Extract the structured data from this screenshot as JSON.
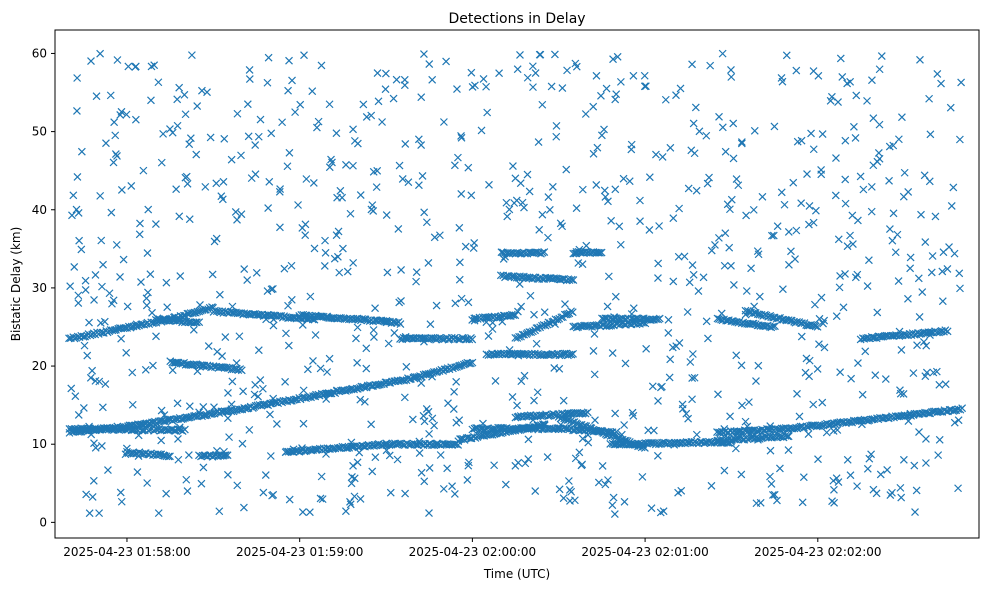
{
  "chart_data": {
    "type": "scatter",
    "title": "Detections in Delay",
    "xlabel": "Time (UTC)",
    "ylabel": "Bistatic Delay (km)",
    "x_ticks": [
      "2025-04-23 01:58:00",
      "2025-04-23 01:59:00",
      "2025-04-23 02:00:00",
      "2025-04-23 02:01:00",
      "2025-04-23 02:02:00"
    ],
    "y_ticks": [
      "0",
      "10",
      "20",
      "30",
      "40",
      "50",
      "60"
    ],
    "xlim": [
      "2025-04-23 01:57:35",
      "2025-04-23 02:02:56"
    ],
    "ylim": [
      -2,
      63
    ],
    "marker": "x",
    "color": "#1f77b4",
    "grid": false,
    "series": [
      {
        "tracks": [
          {
            "x": [
              "2025-04-23 01:57:40",
              "2025-04-23 01:58:05",
              "2025-04-23 01:58:40",
              "2025-04-23 01:59:10",
              "2025-04-23 01:59:40",
              "2025-04-23 01:59:60"
            ],
            "y": [
              11.5,
              12.5,
              14.5,
              16.5,
              18.5,
              20.5
            ]
          },
          {
            "x": [
              "2025-04-23 02:00:00",
              "2025-04-23 02:00:30",
              "2025-04-23 02:00:50"
            ],
            "y": [
              12.0,
              12.0,
              11.5
            ]
          },
          {
            "x": [
              "2025-04-23 02:00:48",
              "2025-04-23 02:01:30"
            ],
            "y": [
              10.0,
              10.3
            ]
          },
          {
            "x": [
              "2025-04-23 02:01:25",
              "2025-04-23 02:01:50",
              "2025-04-23 02:02:15",
              "2025-04-23 02:02:50"
            ],
            "y": [
              11.5,
              12.0,
              13.0,
              14.5
            ]
          },
          {
            "x": [
              "2025-04-23 01:58:55",
              "2025-04-23 01:59:30",
              "2025-04-23 01:59:55"
            ],
            "y": [
              9.0,
              10.0,
              10.0
            ]
          },
          {
            "x": [
              "2025-04-23 01:59:55",
              "2025-04-23 02:00:25"
            ],
            "y": [
              10.5,
              12.5
            ]
          },
          {
            "x": [
              "2025-04-23 02:00:30",
              "2025-04-23 02:01:00"
            ],
            "y": [
              13.5,
              9.5
            ]
          },
          {
            "x": [
              "2025-04-23 01:57:40",
              "2025-04-23 01:58:20"
            ],
            "y": [
              12.0,
              11.8
            ]
          },
          {
            "x": [
              "2025-04-23 01:57:40",
              "2025-04-23 01:58:15",
              "2025-04-23 01:58:30"
            ],
            "y": [
              23.5,
              26.0,
              27.5
            ]
          },
          {
            "x": [
              "2025-04-23 01:58:30",
              "2025-04-23 01:59:05"
            ],
            "y": [
              27.0,
              26.0
            ]
          },
          {
            "x": [
              "2025-04-23 01:58:10",
              "2025-04-23 01:58:25"
            ],
            "y": [
              26.0,
              25.5
            ]
          },
          {
            "x": [
              "2025-04-23 01:59:00",
              "2025-04-23 01:59:20",
              "2025-04-23 01:59:35"
            ],
            "y": [
              26.5,
              26.0,
              25.5
            ]
          },
          {
            "x": [
              "2025-04-23 01:59:35",
              "2025-04-23 02:00:00"
            ],
            "y": [
              23.5,
              23.5
            ]
          },
          {
            "x": [
              "2025-04-23 02:00:00",
              "2025-04-23 02:00:15"
            ],
            "y": [
              26.0,
              26.5
            ]
          },
          {
            "x": [
              "2025-04-23 02:00:15",
              "2025-04-23 02:00:35"
            ],
            "y": [
              23.5,
              27.0
            ]
          },
          {
            "x": [
              "2025-04-23 02:00:35",
              "2025-04-23 02:01:00"
            ],
            "y": [
              25.0,
              25.5
            ]
          },
          {
            "x": [
              "2025-04-23 02:00:45",
              "2025-04-23 02:01:05"
            ],
            "y": [
              26.0,
              26.0
            ]
          },
          {
            "x": [
              "2025-04-23 02:01:25",
              "2025-04-23 02:01:45"
            ],
            "y": [
              26.0,
              25.0
            ]
          },
          {
            "x": [
              "2025-04-23 02:01:35",
              "2025-04-23 02:02:00"
            ],
            "y": [
              27.0,
              25.0
            ]
          },
          {
            "x": [
              "2025-04-23 02:02:15",
              "2025-04-23 02:02:45"
            ],
            "y": [
              23.5,
              24.5
            ]
          },
          {
            "x": [
              "2025-04-23 02:00:10",
              "2025-04-23 02:00:35"
            ],
            "y": [
              31.5,
              31.0
            ]
          },
          {
            "x": [
              "2025-04-23 02:00:35",
              "2025-04-23 02:00:45"
            ],
            "y": [
              34.5,
              34.5
            ]
          },
          {
            "x": [
              "2025-04-23 02:00:10",
              "2025-04-23 02:00:25"
            ],
            "y": [
              34.5,
              34.5
            ]
          },
          {
            "x": [
              "2025-04-23 02:00:05",
              "2025-04-23 02:00:35"
            ],
            "y": [
              21.5,
              21.5
            ]
          },
          {
            "x": [
              "2025-04-23 01:58:15",
              "2025-04-23 01:58:40"
            ],
            "y": [
              20.5,
              19.5
            ]
          },
          {
            "x": [
              "2025-04-23 01:58:00",
              "2025-04-23 01:58:15"
            ],
            "y": [
              9.0,
              8.5
            ]
          },
          {
            "x": [
              "2025-04-23 01:58:25",
              "2025-04-23 01:58:35"
            ],
            "y": [
              8.5,
              8.5
            ]
          },
          {
            "x": [
              "2025-04-23 02:00:15",
              "2025-04-23 02:00:40"
            ],
            "y": [
              13.5,
              14.0
            ]
          },
          {
            "x": [
              "2025-04-23 02:01:25",
              "2025-04-23 02:01:50"
            ],
            "y": [
              10.5,
              11.0
            ]
          }
        ],
        "noise_count": 950,
        "noise_x_range": [
          "2025-04-23 01:57:40",
          "2025-04-23 02:02:50"
        ],
        "noise_y_range": [
          1,
          60
        ]
      }
    ]
  }
}
